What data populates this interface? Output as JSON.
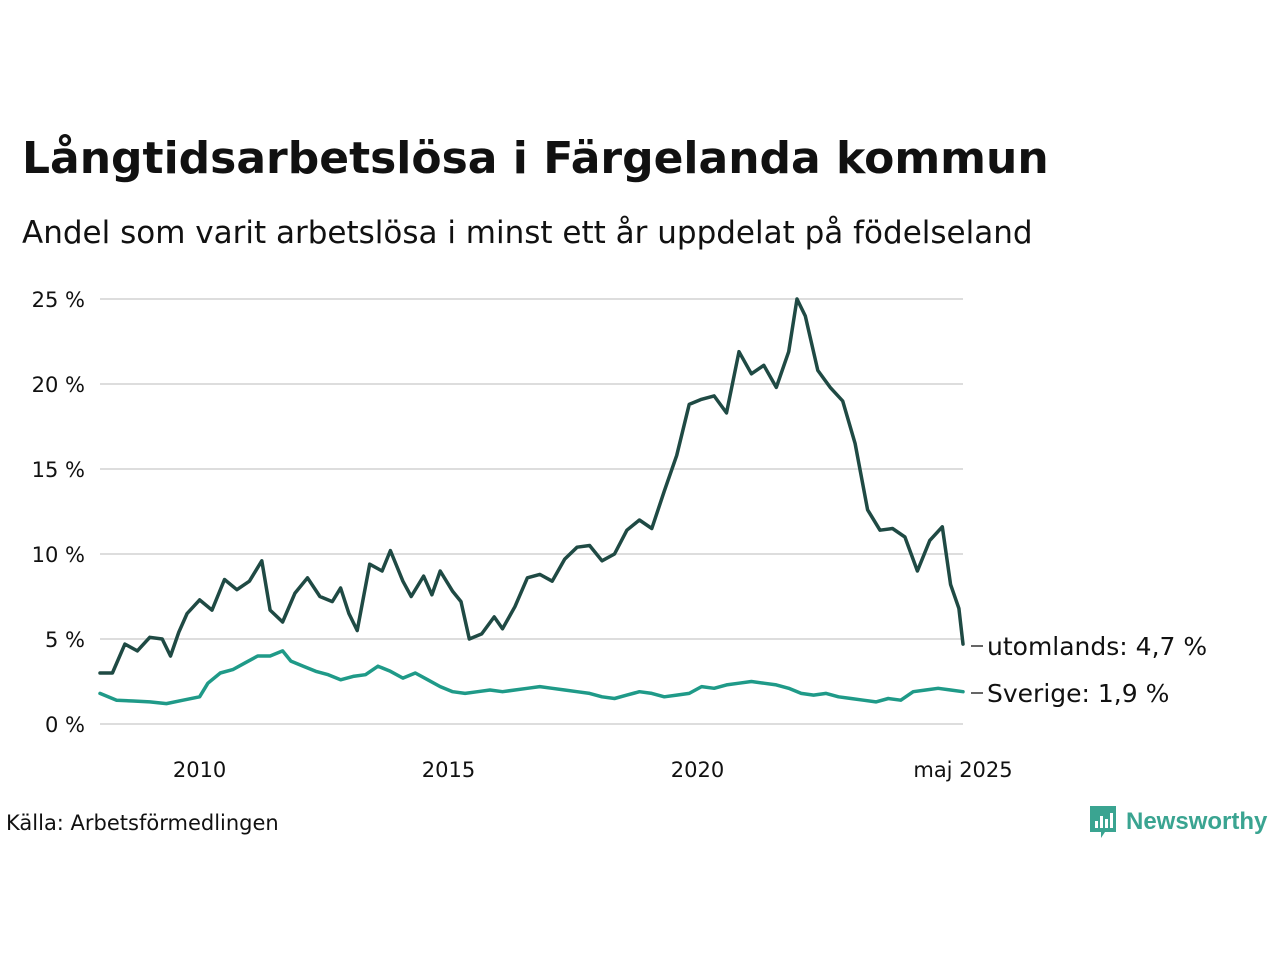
{
  "header": {
    "title": "Långtidsarbetslösa i Färgelanda kommun",
    "subtitle": "Andel som varit arbetslösa i minst ett år uppdelat på födelseland"
  },
  "footer": {
    "source": "Källa: Arbetsförmedlingen",
    "brand": "Newsworthy"
  },
  "colors": {
    "utomlands": "#1f4a44",
    "sverige": "#1f9a88",
    "grid": "#dddddd",
    "brand": "#3aa491"
  },
  "chart_data": {
    "type": "line",
    "title": "Långtidsarbetslösa i Färgelanda kommun",
    "subtitle": "Andel som varit arbetslösa i minst ett år uppdelat på födelseland",
    "ylim": [
      0,
      25
    ],
    "y_ticks": [
      0,
      5,
      10,
      15,
      20,
      25
    ],
    "y_tick_labels": [
      "0 %",
      "5 %",
      "10 %",
      "15 %",
      "20 %",
      "25 %"
    ],
    "x_range": [
      "2008-01",
      "2025-05"
    ],
    "x_ticks": [
      "2010-01",
      "2015-01",
      "2020-01",
      "2025-05"
    ],
    "x_tick_labels": [
      "2010",
      "2015",
      "2020",
      "maj 2025"
    ],
    "grid": true,
    "series": [
      {
        "name": "utomlands",
        "end_label": "utomlands: 4,7 %",
        "points": [
          [
            "2008-01",
            3.0
          ],
          [
            "2008-04",
            3.0
          ],
          [
            "2008-07",
            4.7
          ],
          [
            "2008-10",
            4.3
          ],
          [
            "2009-01",
            5.1
          ],
          [
            "2009-04",
            5.0
          ],
          [
            "2009-06",
            4.0
          ],
          [
            "2009-08",
            5.4
          ],
          [
            "2009-10",
            6.5
          ],
          [
            "2010-01",
            7.3
          ],
          [
            "2010-04",
            6.7
          ],
          [
            "2010-07",
            8.5
          ],
          [
            "2010-10",
            7.9
          ],
          [
            "2011-01",
            8.4
          ],
          [
            "2011-04",
            9.6
          ],
          [
            "2011-06",
            6.7
          ],
          [
            "2011-09",
            6.0
          ],
          [
            "2011-12",
            7.7
          ],
          [
            "2012-03",
            8.6
          ],
          [
            "2012-06",
            7.5
          ],
          [
            "2012-09",
            7.2
          ],
          [
            "2012-11",
            8.0
          ],
          [
            "2013-01",
            6.5
          ],
          [
            "2013-03",
            5.5
          ],
          [
            "2013-06",
            9.4
          ],
          [
            "2013-09",
            9.0
          ],
          [
            "2013-11",
            10.2
          ],
          [
            "2014-02",
            8.4
          ],
          [
            "2014-04",
            7.5
          ],
          [
            "2014-07",
            8.7
          ],
          [
            "2014-09",
            7.6
          ],
          [
            "2014-11",
            9.0
          ],
          [
            "2015-02",
            7.8
          ],
          [
            "2015-04",
            7.2
          ],
          [
            "2015-06",
            5.0
          ],
          [
            "2015-09",
            5.3
          ],
          [
            "2015-12",
            6.3
          ],
          [
            "2016-02",
            5.6
          ],
          [
            "2016-05",
            6.9
          ],
          [
            "2016-08",
            8.6
          ],
          [
            "2016-11",
            8.8
          ],
          [
            "2017-02",
            8.4
          ],
          [
            "2017-05",
            9.7
          ],
          [
            "2017-08",
            10.4
          ],
          [
            "2017-11",
            10.5
          ],
          [
            "2018-02",
            9.6
          ],
          [
            "2018-05",
            10.0
          ],
          [
            "2018-08",
            11.4
          ],
          [
            "2018-11",
            12.0
          ],
          [
            "2019-02",
            11.5
          ],
          [
            "2019-05",
            13.7
          ],
          [
            "2019-08",
            15.8
          ],
          [
            "2019-11",
            18.8
          ],
          [
            "2020-02",
            19.1
          ],
          [
            "2020-05",
            19.3
          ],
          [
            "2020-08",
            18.3
          ],
          [
            "2020-11",
            21.9
          ],
          [
            "2021-02",
            20.6
          ],
          [
            "2021-05",
            21.1
          ],
          [
            "2021-08",
            19.8
          ],
          [
            "2021-11",
            21.9
          ],
          [
            "2022-01",
            25.0
          ],
          [
            "2022-03",
            24.0
          ],
          [
            "2022-06",
            20.8
          ],
          [
            "2022-09",
            19.8
          ],
          [
            "2022-12",
            19.0
          ],
          [
            "2023-03",
            16.5
          ],
          [
            "2023-06",
            12.6
          ],
          [
            "2023-09",
            11.4
          ],
          [
            "2023-12",
            11.5
          ],
          [
            "2024-03",
            11.0
          ],
          [
            "2024-06",
            9.0
          ],
          [
            "2024-09",
            10.8
          ],
          [
            "2024-12",
            11.6
          ],
          [
            "2025-02",
            8.2
          ],
          [
            "2025-04",
            6.8
          ],
          [
            "2025-05",
            4.7
          ]
        ]
      },
      {
        "name": "Sverige",
        "end_label": "Sverige: 1,9 %",
        "points": [
          [
            "2008-01",
            1.8
          ],
          [
            "2008-05",
            1.4
          ],
          [
            "2008-09",
            1.35
          ],
          [
            "2009-01",
            1.3
          ],
          [
            "2009-05",
            1.2
          ],
          [
            "2009-09",
            1.4
          ],
          [
            "2010-01",
            1.6
          ],
          [
            "2010-03",
            2.4
          ],
          [
            "2010-06",
            3.0
          ],
          [
            "2010-09",
            3.2
          ],
          [
            "2010-12",
            3.6
          ],
          [
            "2011-03",
            4.0
          ],
          [
            "2011-06",
            4.0
          ],
          [
            "2011-09",
            4.3
          ],
          [
            "2011-11",
            3.7
          ],
          [
            "2012-02",
            3.4
          ],
          [
            "2012-05",
            3.1
          ],
          [
            "2012-08",
            2.9
          ],
          [
            "2012-11",
            2.6
          ],
          [
            "2013-02",
            2.8
          ],
          [
            "2013-05",
            2.9
          ],
          [
            "2013-08",
            3.4
          ],
          [
            "2013-11",
            3.1
          ],
          [
            "2014-02",
            2.7
          ],
          [
            "2014-05",
            3.0
          ],
          [
            "2014-08",
            2.6
          ],
          [
            "2014-11",
            2.2
          ],
          [
            "2015-02",
            1.9
          ],
          [
            "2015-05",
            1.8
          ],
          [
            "2015-08",
            1.9
          ],
          [
            "2015-11",
            2.0
          ],
          [
            "2016-02",
            1.9
          ],
          [
            "2016-05",
            2.0
          ],
          [
            "2016-08",
            2.1
          ],
          [
            "2016-11",
            2.2
          ],
          [
            "2017-02",
            2.1
          ],
          [
            "2017-05",
            2.0
          ],
          [
            "2017-08",
            1.9
          ],
          [
            "2017-11",
            1.8
          ],
          [
            "2018-02",
            1.6
          ],
          [
            "2018-05",
            1.5
          ],
          [
            "2018-08",
            1.7
          ],
          [
            "2018-11",
            1.9
          ],
          [
            "2019-02",
            1.8
          ],
          [
            "2019-05",
            1.6
          ],
          [
            "2019-08",
            1.7
          ],
          [
            "2019-11",
            1.8
          ],
          [
            "2020-02",
            2.2
          ],
          [
            "2020-05",
            2.1
          ],
          [
            "2020-08",
            2.3
          ],
          [
            "2020-11",
            2.4
          ],
          [
            "2021-02",
            2.5
          ],
          [
            "2021-05",
            2.4
          ],
          [
            "2021-08",
            2.3
          ],
          [
            "2021-11",
            2.1
          ],
          [
            "2022-02",
            1.8
          ],
          [
            "2022-05",
            1.7
          ],
          [
            "2022-08",
            1.8
          ],
          [
            "2022-11",
            1.6
          ],
          [
            "2023-02",
            1.5
          ],
          [
            "2023-05",
            1.4
          ],
          [
            "2023-08",
            1.3
          ],
          [
            "2023-11",
            1.5
          ],
          [
            "2024-02",
            1.4
          ],
          [
            "2024-05",
            1.9
          ],
          [
            "2024-08",
            2.0
          ],
          [
            "2024-11",
            2.1
          ],
          [
            "2025-02",
            2.0
          ],
          [
            "2025-05",
            1.9
          ]
        ]
      }
    ]
  }
}
